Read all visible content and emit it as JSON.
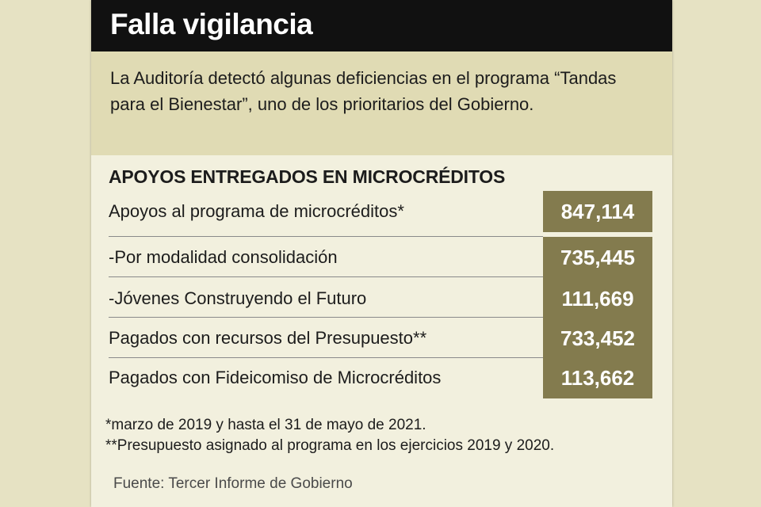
{
  "title": "Falla vigilancia",
  "intro": "La Auditoría detectó algunas deficiencias en el programa “Tandas para el Bienestar”, uno de los prioritarios del Gobierno.",
  "section_heading": "APOYOS ENTREGADOS EN MICROCRÉDITOS",
  "rows": [
    {
      "label": "Apoyos al programa de microcréditos*",
      "value": "847,114"
    },
    {
      "label": "-Por modalidad consolidación",
      "value": "735,445"
    },
    {
      "label": "-Jóvenes Construyendo el Futuro",
      "value": "111,669"
    },
    {
      "label": "Pagados con recursos del Presupuesto**",
      "value": "733,452"
    },
    {
      "label": "Pagados con Fideicomiso de Microcréditos",
      "value": "113,662"
    }
  ],
  "notes": [
    "*marzo de 2019 y hasta el 31 de mayo de 2021.",
    "**Presupuesto asignado al programa en los ejercicios 2019 y 2020."
  ],
  "source": "Fuente: Tercer Informe de Gobierno",
  "colors": {
    "page_background": "#e6e2c3",
    "card_background": "#f2f0de",
    "title_bar": "#111111",
    "intro_background": "#e0dbb4",
    "value_box": "#837b4e"
  }
}
